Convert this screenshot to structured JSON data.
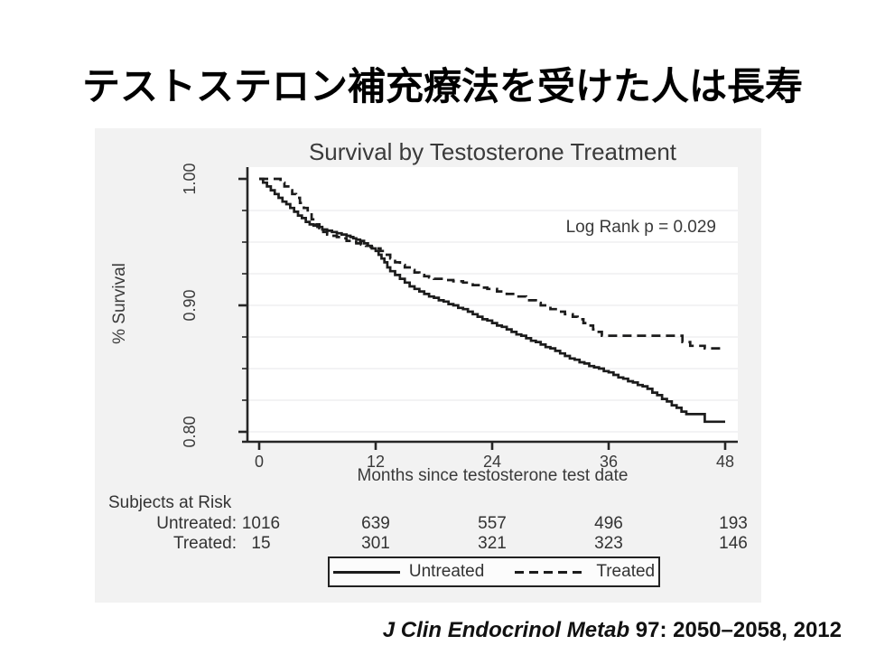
{
  "slide": {
    "title": "テストステロン補充療法を受けた人は長寿",
    "citation": {
      "journal": "J Clin Endocrinol Metab",
      "rest": " 97: 2050–2058, 2012"
    }
  },
  "chart_data": {
    "type": "line",
    "subtype": "kaplan-meier-step",
    "title": "Survival by Testosterone Treatment",
    "xlabel": "Months since testosterone test date",
    "ylabel": "% Survival",
    "annotation": "Log Rank p = 0.029",
    "xlim": [
      0,
      48
    ],
    "x_ticks": [
      0,
      12,
      24,
      36,
      48
    ],
    "y_ticks": [
      {
        "value": 1.0,
        "label": "1.00"
      },
      {
        "value": 0.9,
        "label": "0.90"
      },
      {
        "value": 0.8,
        "label": "0.80"
      }
    ],
    "y_minor_ticks": [
      0.975,
      0.95,
      0.925,
      0.875,
      0.85,
      0.825
    ],
    "gridlines": [
      0.975,
      0.95,
      0.925,
      0.9,
      0.875,
      0.85,
      0.825,
      0.8
    ],
    "ylim_display": [
      0.791,
      1.009
    ],
    "grid": true,
    "legend_position": "bottom",
    "series": [
      {
        "name": "Untreated",
        "line": "solid",
        "color": "#1c1c1c",
        "steps": [
          [
            0,
            1.0
          ],
          [
            0.4,
            0.997
          ],
          [
            0.8,
            0.994
          ],
          [
            1.2,
            0.991
          ],
          [
            1.6,
            0.988
          ],
          [
            2,
            0.985
          ],
          [
            2.4,
            0.982
          ],
          [
            2.8,
            0.98
          ],
          [
            3.2,
            0.977
          ],
          [
            3.6,
            0.974
          ],
          [
            4,
            0.971
          ],
          [
            4.4,
            0.969
          ],
          [
            4.8,
            0.966
          ],
          [
            5.2,
            0.964
          ],
          [
            5.6,
            0.963
          ],
          [
            6,
            0.962
          ],
          [
            6.5,
            0.96
          ],
          [
            7,
            0.959
          ],
          [
            7.5,
            0.958
          ],
          [
            8,
            0.957
          ],
          [
            8.5,
            0.956
          ],
          [
            9,
            0.955
          ],
          [
            9.4,
            0.954
          ],
          [
            9.7,
            0.953
          ],
          [
            10,
            0.952
          ],
          [
            10.4,
            0.951
          ],
          [
            10.8,
            0.949
          ],
          [
            11.2,
            0.947
          ],
          [
            11.6,
            0.945
          ],
          [
            12,
            0.943
          ],
          [
            12.3,
            0.94
          ],
          [
            12.6,
            0.937
          ],
          [
            12.9,
            0.934
          ],
          [
            13.2,
            0.93
          ],
          [
            13.5,
            0.927
          ],
          [
            14,
            0.924
          ],
          [
            14.5,
            0.921
          ],
          [
            15,
            0.918
          ],
          [
            15.5,
            0.915
          ],
          [
            16,
            0.913
          ],
          [
            16.5,
            0.911
          ],
          [
            17,
            0.909
          ],
          [
            17.5,
            0.907
          ],
          [
            18,
            0.906
          ],
          [
            18.5,
            0.904
          ],
          [
            19,
            0.903
          ],
          [
            19.5,
            0.901
          ],
          [
            20,
            0.9
          ],
          [
            20.5,
            0.898
          ],
          [
            21,
            0.897
          ],
          [
            21.5,
            0.895
          ],
          [
            22,
            0.893
          ],
          [
            22.5,
            0.891
          ],
          [
            23,
            0.889
          ],
          [
            23.5,
            0.888
          ],
          [
            24,
            0.886
          ],
          [
            24.5,
            0.884
          ],
          [
            25,
            0.883
          ],
          [
            25.5,
            0.881
          ],
          [
            26,
            0.879
          ],
          [
            26.5,
            0.877
          ],
          [
            27,
            0.876
          ],
          [
            27.5,
            0.874
          ],
          [
            28,
            0.872
          ],
          [
            28.5,
            0.871
          ],
          [
            29,
            0.869
          ],
          [
            29.5,
            0.867
          ],
          [
            30,
            0.866
          ],
          [
            30.5,
            0.864
          ],
          [
            31,
            0.862
          ],
          [
            31.5,
            0.86
          ],
          [
            32,
            0.858
          ],
          [
            32.5,
            0.857
          ],
          [
            33,
            0.855
          ],
          [
            33.5,
            0.854
          ],
          [
            34,
            0.852
          ],
          [
            34.5,
            0.851
          ],
          [
            35,
            0.85
          ],
          [
            35.5,
            0.848
          ],
          [
            36,
            0.847
          ],
          [
            36.5,
            0.845
          ],
          [
            37,
            0.843
          ],
          [
            37.5,
            0.842
          ],
          [
            38,
            0.84
          ],
          [
            38.5,
            0.839
          ],
          [
            39,
            0.837
          ],
          [
            39.5,
            0.836
          ],
          [
            40,
            0.834
          ],
          [
            40.5,
            0.831
          ],
          [
            41,
            0.829
          ],
          [
            41.5,
            0.826
          ],
          [
            42,
            0.824
          ],
          [
            42.5,
            0.821
          ],
          [
            43,
            0.819
          ],
          [
            43.5,
            0.816
          ],
          [
            44,
            0.814
          ],
          [
            45.9,
            0.808
          ],
          [
            48,
            0.808
          ]
        ]
      },
      {
        "name": "Treated",
        "line": "dashed",
        "color": "#1c1c1c",
        "steps": [
          [
            0,
            1.0
          ],
          [
            2.2,
            0.997
          ],
          [
            2.6,
            0.994
          ],
          [
            3,
            0.991
          ],
          [
            3.4,
            0.988
          ],
          [
            3.8,
            0.985
          ],
          [
            4.2,
            0.981
          ],
          [
            4.6,
            0.977
          ],
          [
            5,
            0.973
          ],
          [
            5.4,
            0.968
          ],
          [
            5.8,
            0.964
          ],
          [
            6.2,
            0.961
          ],
          [
            6.6,
            0.958
          ],
          [
            7,
            0.956
          ],
          [
            7.4,
            0.955
          ],
          [
            8,
            0.954
          ],
          [
            8.5,
            0.953
          ],
          [
            9,
            0.951
          ],
          [
            9.5,
            0.95
          ],
          [
            10,
            0.949
          ],
          [
            10.5,
            0.948
          ],
          [
            11,
            0.947
          ],
          [
            11.5,
            0.946
          ],
          [
            12,
            0.945
          ],
          [
            12.5,
            0.943
          ],
          [
            13,
            0.94
          ],
          [
            13.5,
            0.937
          ],
          [
            14,
            0.934
          ],
          [
            14.5,
            0.932
          ],
          [
            15,
            0.93
          ],
          [
            15.5,
            0.928
          ],
          [
            16,
            0.926
          ],
          [
            16.5,
            0.924
          ],
          [
            17,
            0.923
          ],
          [
            17.5,
            0.922
          ],
          [
            18,
            0.921
          ],
          [
            19,
            0.92
          ],
          [
            20,
            0.919
          ],
          [
            21,
            0.918
          ],
          [
            22,
            0.916
          ],
          [
            23,
            0.914
          ],
          [
            23.5,
            0.913
          ],
          [
            24.5,
            0.911
          ],
          [
            25.5,
            0.909
          ],
          [
            26.5,
            0.907
          ],
          [
            27.5,
            0.904
          ],
          [
            28.5,
            0.902
          ],
          [
            29,
            0.9
          ],
          [
            30,
            0.897
          ],
          [
            30.7,
            0.895
          ],
          [
            31.5,
            0.893
          ],
          [
            32.3,
            0.891
          ],
          [
            32.8,
            0.889
          ],
          [
            33.4,
            0.886
          ],
          [
            33.9,
            0.884
          ],
          [
            34.4,
            0.881
          ],
          [
            34.8,
            0.879
          ],
          [
            35.3,
            0.876
          ],
          [
            43.6,
            0.871
          ],
          [
            44.4,
            0.868
          ],
          [
            45.9,
            0.866
          ],
          [
            48,
            0.866
          ]
        ]
      }
    ]
  },
  "risk_table": {
    "heading": "Subjects at Risk",
    "columns_months": [
      0,
      12,
      24,
      36,
      48
    ],
    "rows": [
      {
        "label": "Untreated:",
        "values": [
          "1016",
          "639",
          "557",
          "496",
          "193"
        ]
      },
      {
        "label": "Treated:",
        "values": [
          "15",
          "301",
          "321",
          "323",
          "146"
        ]
      }
    ]
  },
  "colors": {
    "panel_bg": "#f2f2f2",
    "plot_bg": "#ffffff",
    "axis": "#262626",
    "text": "#3a3a3a",
    "grid": "#efeff0",
    "curve": "#1c1c1c"
  }
}
